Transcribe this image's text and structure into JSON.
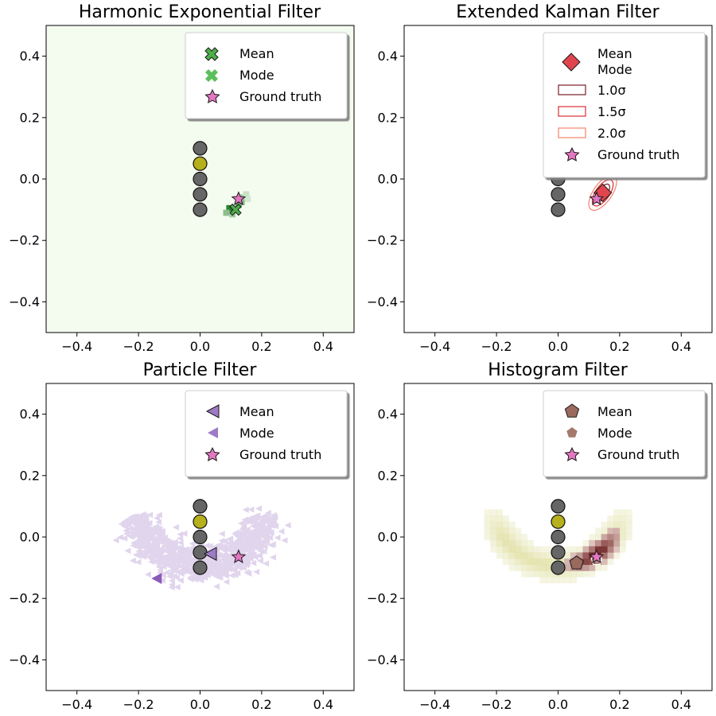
{
  "chart_data": [
    {
      "type": "scatter",
      "title": "Harmonic Exponential Filter",
      "xlim": [
        -0.5,
        0.5
      ],
      "ylim": [
        -0.5,
        0.5
      ],
      "xticks": [
        -0.4,
        -0.2,
        0.0,
        0.2,
        0.4
      ],
      "yticks": [
        -0.4,
        -0.2,
        0.0,
        0.2,
        0.4
      ],
      "xtick_labels": [
        "−0.4",
        "−0.2",
        "0.0",
        "0.2",
        "0.4"
      ],
      "ytick_labels": [
        "−0.4",
        "−0.2",
        "0.0",
        "0.2",
        "0.4"
      ],
      "grid": false,
      "legend_position": "top-right",
      "legend": [
        "Mean",
        "Mode",
        "Ground truth"
      ],
      "colors": {
        "accent": "#4daf4a",
        "ground_truth": "#e377c2",
        "landmark": "#666666",
        "landmark_highlight": "#b5b01c",
        "background": "#f4fbef"
      },
      "landmarks": {
        "x": [
          0,
          0,
          0,
          0,
          0
        ],
        "y": [
          0.1,
          0.05,
          0,
          -0.05,
          -0.1
        ],
        "highlight_index": 1
      },
      "mean": [
        0.115,
        -0.1
      ],
      "mode": [
        0.115,
        -0.1
      ],
      "ground_truth": [
        0.125,
        -0.065
      ],
      "density_cells": [
        {
          "x": 0.095,
          "y": -0.095,
          "v": 1.0
        },
        {
          "x": 0.115,
          "y": -0.1,
          "v": 0.9
        },
        {
          "x": 0.125,
          "y": -0.085,
          "v": 0.75
        },
        {
          "x": 0.135,
          "y": -0.075,
          "v": 0.55
        },
        {
          "x": 0.14,
          "y": -0.06,
          "v": 0.35
        },
        {
          "x": 0.085,
          "y": -0.11,
          "v": 0.5
        },
        {
          "x": 0.105,
          "y": -0.115,
          "v": 0.4
        },
        {
          "x": 0.15,
          "y": -0.05,
          "v": 0.2
        },
        {
          "x": 0.155,
          "y": -0.065,
          "v": 0.15
        }
      ]
    },
    {
      "type": "scatter",
      "title": "Extended Kalman Filter",
      "xlim": [
        -0.5,
        0.5
      ],
      "ylim": [
        -0.5,
        0.5
      ],
      "xticks": [
        -0.4,
        -0.2,
        0.0,
        0.2,
        0.4
      ],
      "yticks": [
        -0.4,
        -0.2,
        0.0,
        0.2,
        0.4
      ],
      "xtick_labels": [
        "−0.4",
        "−0.2",
        "0.0",
        "0.2",
        "0.4"
      ],
      "ytick_labels": [
        "−0.4",
        "−0.2",
        "0.0",
        "0.2",
        "0.4"
      ],
      "grid": false,
      "legend_position": "top-right",
      "legend": [
        "Mean",
        "Mode",
        "1.0σ",
        "1.5σ",
        "2.0σ",
        "Ground truth"
      ],
      "colors": {
        "accent": "#e0454e",
        "sigma_1": "#7a1e2a",
        "sigma_1_5": "#d92e35",
        "sigma_2": "#f2846c",
        "ground_truth": "#e377c2",
        "landmark": "#666666"
      },
      "landmarks": {
        "x": [
          0,
          0,
          0,
          0,
          0
        ],
        "y": [
          0.1,
          0.05,
          0,
          -0.05,
          -0.1
        ],
        "visible_below_legend": [
          0,
          -0.05,
          -0.1
        ]
      },
      "mean": [
        0.145,
        -0.045
      ],
      "ground_truth": [
        0.125,
        -0.065
      ],
      "ellipse": {
        "center": [
          0.145,
          -0.045
        ],
        "semi_major": 0.033,
        "semi_minor": 0.015,
        "angle_deg": 55,
        "sigmas": [
          1.0,
          1.5,
          2.0
        ]
      }
    },
    {
      "type": "scatter",
      "title": "Particle Filter",
      "xlim": [
        -0.5,
        0.5
      ],
      "ylim": [
        -0.5,
        0.5
      ],
      "xticks": [
        -0.4,
        -0.2,
        0.0,
        0.2,
        0.4
      ],
      "yticks": [
        -0.4,
        -0.2,
        0.0,
        0.2,
        0.4
      ],
      "xtick_labels": [
        "−0.4",
        "−0.2",
        "0.0",
        "0.2",
        "0.4"
      ],
      "ytick_labels": [
        "−0.4",
        "−0.2",
        "0.0",
        "0.2",
        "0.4"
      ],
      "grid": false,
      "legend_position": "top-right",
      "legend": [
        "Mean",
        "Mode",
        "Ground truth"
      ],
      "colors": {
        "accent": "#9467bd",
        "ground_truth": "#e377c2",
        "landmark": "#666666",
        "landmark_highlight": "#b5b01c"
      },
      "landmarks": {
        "x": [
          0,
          0,
          0,
          0,
          0
        ],
        "y": [
          0.1,
          0.05,
          0,
          -0.05,
          -0.1
        ],
        "highlight_index": 1
      },
      "mean": [
        0.035,
        -0.055
      ],
      "mode": [
        -0.14,
        -0.135
      ],
      "ground_truth": [
        0.125,
        -0.065
      ],
      "particle_cloud": {
        "shape": "arc",
        "center": [
          0.0,
          0.12
        ],
        "radius": 0.215,
        "angle_from_deg": 195,
        "angle_to_deg": 345,
        "spread": 0.028,
        "count": 900
      }
    },
    {
      "type": "heatmap",
      "title": "Histogram Filter",
      "xlim": [
        -0.5,
        0.5
      ],
      "ylim": [
        -0.5,
        0.5
      ],
      "xticks": [
        -0.4,
        -0.2,
        0.0,
        0.2,
        0.4
      ],
      "yticks": [
        -0.4,
        -0.2,
        0.0,
        0.2,
        0.4
      ],
      "xtick_labels": [
        "−0.4",
        "−0.2",
        "0.0",
        "0.2",
        "0.4"
      ],
      "ytick_labels": [
        "−0.4",
        "−0.2",
        "0.0",
        "0.2",
        "0.4"
      ],
      "grid": false,
      "legend_position": "top-right",
      "legend": [
        "Mean",
        "Mode",
        "Ground truth"
      ],
      "colors": {
        "accent": "#9b6a5e",
        "ground_truth": "#e377c2",
        "landmark": "#666666",
        "landmark_highlight": "#b5b01c"
      },
      "landmarks": {
        "x": [
          0,
          0,
          0,
          0,
          0
        ],
        "y": [
          0.1,
          0.05,
          0,
          -0.05,
          -0.1
        ],
        "highlight_index": 1
      },
      "mean": [
        0.06,
        -0.085
      ],
      "mode": [
        0.125,
        -0.075
      ],
      "ground_truth": [
        0.125,
        -0.065
      ],
      "grid_cell": 0.02,
      "density": {
        "shape": "arc",
        "center": [
          0.0,
          0.12
        ],
        "radius": 0.215,
        "angle_from_deg": 195,
        "angle_to_deg": 345,
        "spread": 0.032,
        "peak_angle_deg": 305,
        "peak_width_deg": 28
      }
    }
  ]
}
